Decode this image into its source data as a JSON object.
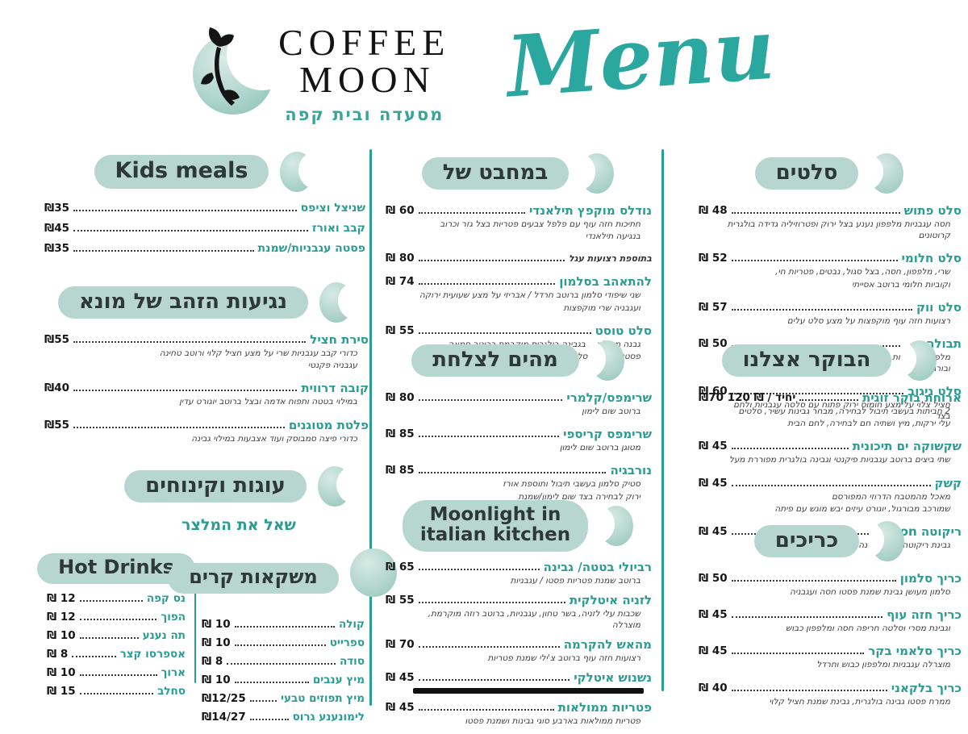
{
  "header": {
    "brand_line1": "COFFEE",
    "brand_line2": "MOON",
    "brand_subtitle": "מסעדה ובית קפה",
    "menu_script": "Menu"
  },
  "colors": {
    "accent_teal": "#2b9c94",
    "pill_background": "#b7d6cf",
    "divider_teal": "#2a9d96",
    "text_dark": "#161616"
  },
  "sections": {
    "kids": {
      "title": "Kids meals",
      "moon": "crescent-right",
      "items": [
        {
          "name": "שניצל וציפס",
          "price": "₪35"
        },
        {
          "name": "קבב ואורז",
          "price": "₪45"
        },
        {
          "name": "פסטה עגבניות/שמנת",
          "price": "₪35"
        }
      ]
    },
    "mona": {
      "title": "נגיעות הזהב של מונא",
      "moon": "crescent-right",
      "items": [
        {
          "name": "סירת חציל",
          "price": "₪55",
          "desc": [
            "כדורי קבב עגבניות שרי על מצע חציל קלוי ורוטב טחינה",
            "עגבניה פקנטי"
          ]
        },
        {
          "name": "קובה דרווית",
          "price": "₪40",
          "desc": [
            "במילוי בטטה ותפוח אדמה ובצל ברוטב יוגורט עדין"
          ]
        },
        {
          "name": "פלטת מטוגנים",
          "price": "₪55",
          "desc": [
            "כדורי פיצה סמבוסק ועוד אצבעות במילוי גבינה"
          ]
        }
      ]
    },
    "cakes": {
      "title": "עוגות וקינוחים",
      "moon": "crescent-right",
      "note": "שאל את המלצר",
      "items": []
    },
    "hot": {
      "title": "Hot Drinks",
      "moon": "none",
      "items": [
        {
          "name": "נס קפה",
          "price": "₪ 12"
        },
        {
          "name": "הפוך",
          "price": "₪ 12"
        },
        {
          "name": "תה נענע",
          "price": "₪ 10"
        },
        {
          "name": "אספרסו קצר",
          "price": "₪ 8"
        },
        {
          "name": "ארוך",
          "price": "₪ 10"
        },
        {
          "name": "סחלב",
          "price": "₪ 15"
        }
      ]
    },
    "cold": {
      "title": "משקאות קרים",
      "moon": "full",
      "items": [
        {
          "name": "קולה",
          "price": "₪ 10"
        },
        {
          "name": "ספרייט",
          "price": "₪ 10"
        },
        {
          "name": "סודה",
          "price": "₪ 8"
        },
        {
          "name": "מיץ ענבים",
          "price": "₪ 10"
        },
        {
          "name": "מיץ תפוזים טבעי",
          "price": "₪12/25"
        },
        {
          "name": "לימונענע גרוס",
          "price": "₪14/27"
        }
      ]
    },
    "pan": {
      "title": "במחבט של",
      "moon": "crescent-left",
      "items": [
        {
          "name": "נודלס מוקפץ תילאנדי",
          "price": "₪ 60",
          "desc": [
            "חתיכות חזה עוף עם פלפל צבעים פטריות בצל גזר וכרוב",
            "בנגיעה תילאנדי"
          ]
        },
        {
          "name": "בתוספת רצועות עגל",
          "price": "₪ 80",
          "small": true
        },
        {
          "name": "להתאהב בסלמון",
          "price": "₪ 74",
          "desc": [
            "שני שיפודי סלמון ברוטב חרדל / אבריזי על מצע שעועית ירוקה",
            "ועגבניה שרי מוקפצות"
          ]
        },
        {
          "name": "סלט טוסט",
          "price": "₪ 55",
          "desc": [
            "גבנה ממולאות בגבינה בולגרית מוקרמת ברוטב חמאה",
            "פסטו על מצע סלט עלים"
          ]
        }
      ]
    },
    "sea": {
      "title": "מהים לצלחת",
      "moon": "crescent-left",
      "items": [
        {
          "name": "שרימפס/קלמרי",
          "price": "₪ 80",
          "desc": [
            "ברוטב שום לימון"
          ]
        },
        {
          "name": "שרימפס קריספי",
          "price": "₪ 85",
          "desc": [
            "מטוגן ברוטב שום לימון"
          ]
        },
        {
          "name": "נורבגיה",
          "price": "₪ 85",
          "desc": [
            "סטיק סלמון בעשבי תיבול ותוספת אורז",
            "ירוק לבחירה בצד שום לימון/שמנת"
          ]
        }
      ]
    },
    "italian": {
      "title_lines": [
        "Moonlight in",
        "italian kitchen"
      ],
      "moon": "crescent-left",
      "items": [
        {
          "name": "רביולי בטטה/ גבינה",
          "price": "₪ 65",
          "desc": [
            "ברוטב שמנת פטריות פסטו / עגבניות"
          ]
        },
        {
          "name": "לזניה איטלקית",
          "price": "₪ 55",
          "desc": [
            "שכבות עלי לזניה, בשר טחון, עגבניות, ברוטב רוזה מוקרמת, מוצרלה"
          ]
        },
        {
          "name": "מהאש להקרמה",
          "price": "₪ 70",
          "desc": [
            "רצועות חזה עוף ברוטב צ'ילי שמנת פטריות"
          ]
        },
        {
          "name": "נשנוש איטלקי",
          "price": "₪ 45",
          "redacted": true
        },
        {
          "name": "פטריות ממולאות",
          "price": "₪ 45",
          "desc": [
            "פטריות ממולאות בארבע סוגי גבינות ושמנת פסטו"
          ]
        }
      ]
    },
    "salads": {
      "title": "סלטים",
      "moon": "crescent-left",
      "items": [
        {
          "name": "סלט פתוש",
          "price": "₪ 48",
          "desc": [
            "חסה עגבניות מלפפון נענע בצל ירוק ופטרוזיליה גדידה בולגרית קרוטונים"
          ]
        },
        {
          "name": "סלט חלומי",
          "price": "₪ 52",
          "desc": [
            "שרי, מלפפון, חסה, בצל סגול, נבטים, פטריות חי,",
            "וקוביות חלומי ברוטב אסייתי"
          ]
        },
        {
          "name": "סלט ווק",
          "price": "₪ 57",
          "desc": [
            "רצועות חזה עוף מוקפצות על מצע סלט עלים"
          ]
        },
        {
          "name": "תבולה",
          "price": "₪ 50",
          "desc": [
            "מלפפון, עגבניות, פטרוזיליה, נענע, בצל ירוק, קוסקוס דק ובורגול"
          ]
        },
        {
          "name": "סלט ניגוב",
          "price": "₪ 60",
          "desc": [
            "חציל צלוי על מצע חומוס ירוק פתוח עם סלסה עגבניות ולחם בצד"
          ]
        }
      ]
    },
    "breakfast": {
      "title": "הבוקר אצלנו",
      "moon": "crescent-left",
      "items": [
        {
          "name": "ארוחת בוקר זוגית",
          "price": "₪70 יחיד / ₪ 120",
          "desc": [
            "2 חביתות בעשבי תיבול לבחירה, מבחר גבינות עשיר, סלטים",
            "עלי ירקות, מיץ ושתיה חם לבחירה, לחם הבית"
          ]
        },
        {
          "name": "שקשוקה ים תיכונית",
          "price": "₪ 45",
          "desc": [
            "שתי ביצים ברוטב עגבניות פיקנטי וגבינה בולגרית מפוררת מעל"
          ]
        },
        {
          "name": "קשק",
          "price": "₪ 45",
          "desc": [
            "מאכל מהמטבח הדרוזי המפורסם",
            "שמורכב מבורגול, יוגורט עיזים יבש מוגש עם פיתה"
          ]
        },
        {
          "name": "ריקוטה moon",
          "price": "₪ 45",
          "desc": [
            "גבינת ריקוטה, קרם בטנה ומייפל"
          ]
        }
      ]
    },
    "sandwiches": {
      "title": "כריכים",
      "moon": "crescent-left",
      "items": [
        {
          "name": "כריך סלמון",
          "price": "₪ 50",
          "desc": [
            "סלמון מעושן גבינת שמנת פסטו חסה ועגבניה"
          ]
        },
        {
          "name": "כריך חזה עוף",
          "price": "₪ 45",
          "desc": [
            "וגבינת מסרי וסלטה חריפה חסה ומלפפון כבוש"
          ]
        },
        {
          "name": "כריך סלאמי בקר",
          "price": "₪ 45",
          "desc": [
            "מוצרלה עגבניות ומלפפון כבוש וחרדל"
          ]
        },
        {
          "name": "כריך בלקאני",
          "price": "₪ 40",
          "desc": [
            "ממרח פסטו גבינה בולגרית, גבינת שמנת חציל קלוי"
          ]
        }
      ]
    }
  }
}
